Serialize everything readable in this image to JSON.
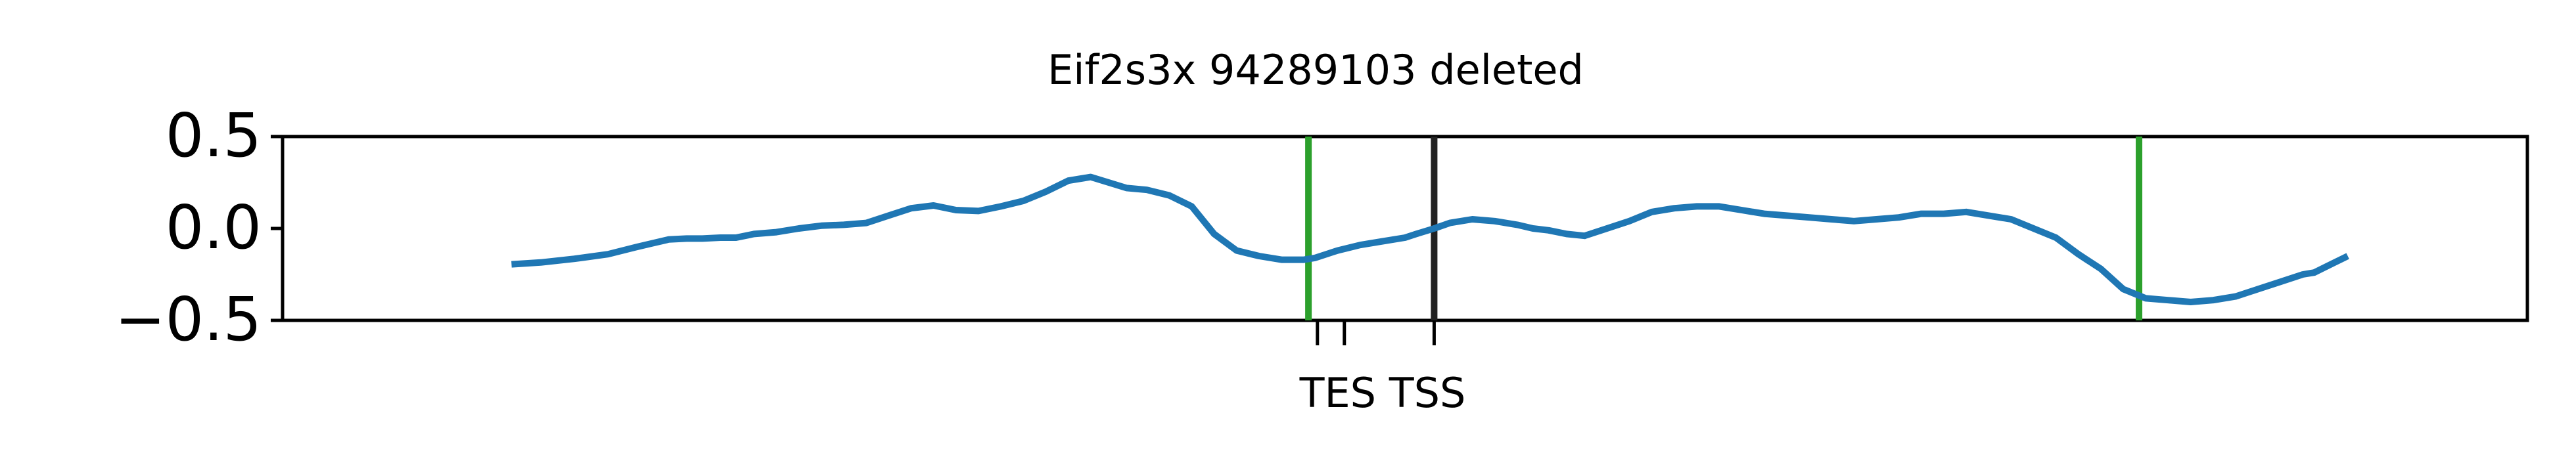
{
  "chart_data": {
    "type": "line",
    "title": "Eif2s3x 94289103 deleted",
    "xlabel": "",
    "ylabel": "",
    "ylim": [
      -0.5,
      0.5
    ],
    "xlim": [
      0,
      1000
    ],
    "grid": false,
    "yticks": [
      {
        "value": 0.5,
        "label": "0.5"
      },
      {
        "value": 0.0,
        "label": "0.0"
      },
      {
        "value": -0.5,
        "label": "−0.5"
      }
    ],
    "xticks": [
      {
        "value": 461,
        "label": "TES"
      },
      {
        "value": 473,
        "label": "TSS"
      },
      {
        "value": 513,
        "label": ""
      }
    ],
    "x_label_text": "TES TSS",
    "vlines": [
      {
        "x": 457,
        "color": "#2ca02c"
      },
      {
        "x": 513,
        "color": "#222222"
      },
      {
        "x": 827,
        "color": "#2ca02c"
      }
    ],
    "series": [
      {
        "color": "#1f77b4",
        "x": [
          102,
          115,
          130,
          145,
          158,
          165,
          172,
          180,
          187,
          195,
          202,
          210,
          220,
          230,
          240,
          250,
          260,
          270,
          280,
          290,
          300,
          310,
          320,
          330,
          340,
          350,
          360,
          368,
          376,
          385,
          395,
          405,
          415,
          425,
          435,
          445,
          455,
          460,
          470,
          480,
          490,
          500,
          505,
          513,
          520,
          530,
          540,
          550,
          557,
          564,
          572,
          580,
          590,
          600,
          610,
          620,
          630,
          640,
          650,
          660,
          670,
          680,
          690,
          700,
          710,
          720,
          730,
          740,
          750,
          760,
          770,
          780,
          790,
          800,
          810,
          820,
          830,
          840,
          850,
          860,
          870,
          880,
          890,
          900,
          905,
          910,
          915,
          920
        ],
        "values": [
          -0.195,
          -0.185,
          -0.165,
          -0.14,
          -0.1,
          -0.08,
          -0.06,
          -0.055,
          -0.055,
          -0.05,
          -0.05,
          -0.03,
          -0.02,
          0.0,
          0.015,
          0.02,
          0.03,
          0.07,
          0.11,
          0.125,
          0.1,
          0.095,
          0.12,
          0.15,
          0.2,
          0.26,
          0.28,
          0.25,
          0.22,
          0.21,
          0.18,
          0.12,
          -0.03,
          -0.12,
          -0.15,
          -0.17,
          -0.17,
          -0.16,
          -0.12,
          -0.09,
          -0.07,
          -0.05,
          -0.03,
          0.0,
          0.03,
          0.05,
          0.04,
          0.02,
          0.0,
          -0.01,
          -0.03,
          -0.04,
          0.0,
          0.04,
          0.09,
          0.11,
          0.12,
          0.12,
          0.1,
          0.08,
          0.07,
          0.06,
          0.05,
          0.04,
          0.05,
          0.06,
          0.08,
          0.08,
          0.09,
          0.07,
          0.05,
          0.0,
          -0.05,
          -0.14,
          -0.22,
          -0.33,
          -0.38,
          -0.39,
          -0.4,
          -0.39,
          -0.37,
          -0.33,
          -0.29,
          -0.25,
          -0.24,
          -0.21,
          -0.18,
          -0.15
        ]
      }
    ]
  }
}
